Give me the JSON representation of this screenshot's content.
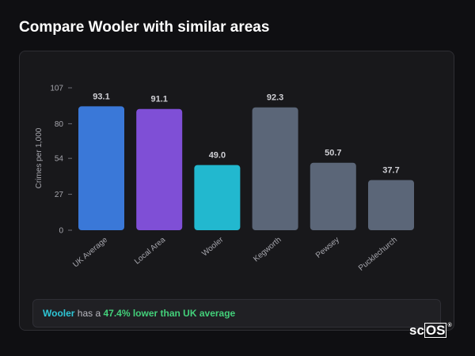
{
  "header": {
    "title": "Compare Wooler with similar areas"
  },
  "chart_data": {
    "type": "bar",
    "title": "",
    "xlabel": "",
    "ylabel": "Crimes per 1,000",
    "ylim": [
      0,
      107
    ],
    "yticks": [
      0,
      27,
      54,
      80,
      107
    ],
    "grid": false,
    "categories": [
      "UK Average",
      "Local Area",
      "Wooler",
      "Kegworth",
      "Pewsey",
      "Pucklechurch"
    ],
    "values": [
      93.1,
      91.1,
      49.0,
      92.3,
      50.7,
      37.7
    ],
    "value_labels": [
      "93.1",
      "91.1",
      "49.0",
      "92.3",
      "50.7",
      "37.7"
    ],
    "colors": [
      "#3a78d8",
      "#7f4fd6",
      "#22b8cf",
      "#5b6678",
      "#5b6678",
      "#5b6678"
    ]
  },
  "summary": {
    "area": "Wooler",
    "middle": " has a ",
    "difference": "47.4% lower than UK average"
  },
  "logo": {
    "prefix": "sc",
    "boxed": "OS",
    "reg": "®"
  }
}
